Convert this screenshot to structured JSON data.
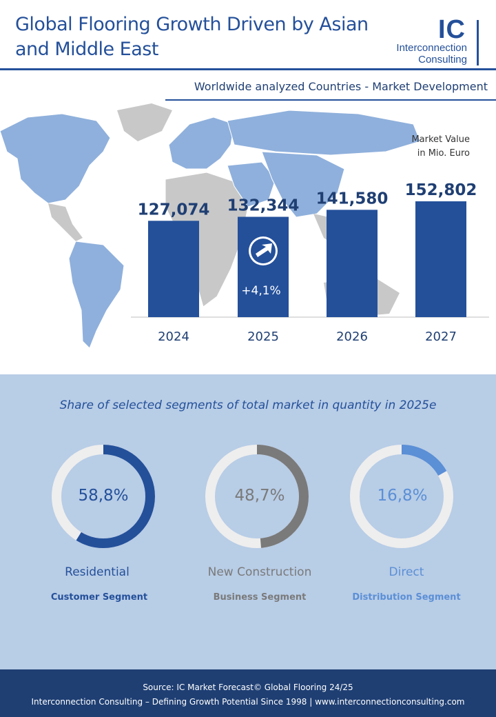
{
  "header": {
    "title_line1": "Global Flooring Growth Driven by Asian",
    "title_line2": "and Middle East",
    "logo_mark": "IC",
    "logo_line1": "Interconnection",
    "logo_line2": "Consulting"
  },
  "subtitle": "Worldwide analyzed Countries - Market Development",
  "market_value_label_line1": "Market Value",
  "market_value_label_line2": "in Mio. Euro",
  "chart_data": {
    "type": "bar",
    "title": "Worldwide analyzed Countries - Market Development",
    "ylabel": "Market Value in Mio. Euro",
    "xlabel": "",
    "categories": [
      "2024",
      "2025",
      "2026",
      "2027"
    ],
    "values": [
      127074,
      132344,
      141580,
      152802
    ],
    "value_labels": [
      "127,074",
      "132,344",
      "141,580",
      "152,802"
    ],
    "growth_annotation": "+4,1%",
    "ylim": [
      0,
      160000
    ],
    "bar_color": "#24509a"
  },
  "segments": {
    "title": "Share of selected segments of total market in quantity in 2025e",
    "items": [
      {
        "value": 58.8,
        "label": "58,8%",
        "name": "Residential",
        "sub": "Customer Segment",
        "color": "#24509a",
        "text_color": "#24509a"
      },
      {
        "value": 48.7,
        "label": "48,7%",
        "name": "New Construction",
        "sub": "Business Segment",
        "color": "#7a7a7a",
        "text_color": "#7a7a7a"
      },
      {
        "value": 16.8,
        "label": "16,8%",
        "name": "Direct",
        "sub": "Distribution Segment",
        "color": "#5b8fd6",
        "text_color": "#5b8fd6"
      }
    ]
  },
  "footer": {
    "line1": "Source: IC Market Forecast© Global Flooring 24/25",
    "line2": "Interconnection Consulting – Defining Growth Potential Since 1998 | www.interconnectionconsulting.com"
  }
}
